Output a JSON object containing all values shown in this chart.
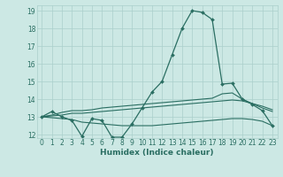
{
  "xlabel": "Humidex (Indice chaleur)",
  "bg_color": "#cce8e4",
  "grid_color": "#aacfcb",
  "line_color": "#2a6e62",
  "xlim": [
    -0.5,
    23.5
  ],
  "ylim": [
    11.8,
    19.3
  ],
  "xticks": [
    0,
    1,
    2,
    3,
    4,
    5,
    6,
    7,
    8,
    9,
    10,
    11,
    12,
    13,
    14,
    15,
    16,
    17,
    18,
    19,
    20,
    21,
    22,
    23
  ],
  "yticks": [
    12,
    13,
    14,
    15,
    16,
    17,
    18,
    19
  ],
  "line1_x": [
    0,
    1,
    2,
    3,
    4,
    5,
    6,
    7,
    8,
    9,
    10,
    11,
    12,
    13,
    14,
    15,
    16,
    17,
    18,
    19,
    20,
    21,
    22,
    23
  ],
  "line1_y": [
    13.0,
    13.3,
    13.0,
    12.8,
    11.9,
    12.9,
    12.8,
    11.85,
    11.85,
    12.6,
    13.5,
    14.4,
    15.0,
    16.5,
    18.0,
    19.0,
    18.9,
    18.5,
    14.85,
    14.9,
    14.0,
    13.7,
    13.35,
    12.5
  ],
  "line2_x": [
    0,
    1,
    2,
    3,
    4,
    5,
    6,
    7,
    8,
    9,
    10,
    11,
    12,
    13,
    14,
    15,
    16,
    17,
    18,
    19,
    20,
    21,
    22,
    23
  ],
  "line2_y": [
    13.0,
    13.1,
    13.25,
    13.35,
    13.35,
    13.4,
    13.5,
    13.55,
    13.6,
    13.65,
    13.7,
    13.75,
    13.8,
    13.85,
    13.9,
    13.95,
    14.0,
    14.05,
    14.3,
    14.35,
    14.0,
    13.75,
    13.5,
    13.3
  ],
  "line3_x": [
    0,
    1,
    2,
    3,
    4,
    5,
    6,
    7,
    8,
    9,
    10,
    11,
    12,
    13,
    14,
    15,
    16,
    17,
    18,
    19,
    20,
    21,
    22,
    23
  ],
  "line3_y": [
    13.0,
    13.05,
    13.1,
    13.2,
    13.2,
    13.25,
    13.3,
    13.35,
    13.4,
    13.45,
    13.5,
    13.55,
    13.6,
    13.65,
    13.7,
    13.75,
    13.8,
    13.85,
    13.9,
    13.95,
    13.9,
    13.75,
    13.6,
    13.4
  ],
  "line4_x": [
    0,
    1,
    2,
    3,
    4,
    5,
    6,
    7,
    8,
    9,
    10,
    11,
    12,
    13,
    14,
    15,
    16,
    17,
    18,
    19,
    20,
    21,
    22,
    23
  ],
  "line4_y": [
    13.0,
    12.95,
    12.9,
    12.85,
    12.7,
    12.65,
    12.6,
    12.55,
    12.5,
    12.5,
    12.5,
    12.5,
    12.55,
    12.6,
    12.65,
    12.7,
    12.75,
    12.8,
    12.85,
    12.9,
    12.9,
    12.85,
    12.75,
    12.5
  ],
  "tick_fontsize": 5.5,
  "xlabel_fontsize": 6.5
}
